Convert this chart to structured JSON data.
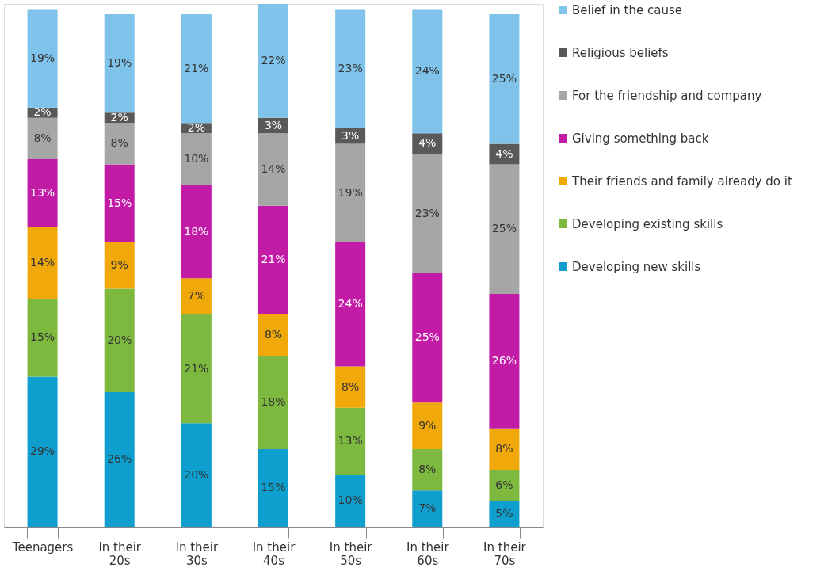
{
  "chart_data": {
    "type": "bar",
    "stacked": true,
    "legend": "right",
    "categories": [
      "Teenagers",
      "In their 20s",
      "In their 30s",
      "In their 40s",
      "In their 50s",
      "In their 60s",
      "In their 70s"
    ],
    "series": [
      {
        "name": "Developing new skills",
        "color": "#0e9fce",
        "values": [
          29,
          26,
          20,
          15,
          10,
          7,
          5
        ],
        "value_labels": [
          "29%",
          "26%",
          "20%",
          "15%",
          "10%",
          "7%",
          "5%"
        ]
      },
      {
        "name": "Developing existing skills",
        "color": "#7db83f",
        "values": [
          15,
          20,
          21,
          18,
          13,
          8,
          6
        ],
        "value_labels": [
          "15%",
          "20%",
          "21%",
          "18%",
          "13%",
          "8%",
          "6%"
        ]
      },
      {
        "name": "Their friends and family already do it",
        "color": "#f0a80a",
        "values": [
          14,
          9,
          7,
          8,
          8,
          9,
          8
        ],
        "value_labels": [
          "14%",
          "9%",
          "7%",
          "8%",
          "8%",
          "9%",
          "8%"
        ]
      },
      {
        "name": "Giving something back",
        "color": "#c21ba6",
        "values": [
          13,
          15,
          18,
          21,
          24,
          25,
          26
        ],
        "value_labels": [
          "13%",
          "15%",
          "18%",
          "21%",
          "24%",
          "25%",
          "26%"
        ]
      },
      {
        "name": "For the friendship and company",
        "color": "#a6a6a6",
        "values": [
          8,
          8,
          10,
          14,
          19,
          23,
          25
        ],
        "value_labels": [
          "8%",
          "8%",
          "10%",
          "14%",
          "19%",
          "23%",
          "25%"
        ]
      },
      {
        "name": "Religious beliefs",
        "color": "#595959",
        "values": [
          2,
          2,
          2,
          3,
          3,
          4,
          4
        ],
        "value_labels": [
          "2%",
          "2%",
          "2%",
          "3%",
          "3%",
          "4%",
          "4%"
        ]
      },
      {
        "name": "Belief in the cause",
        "color": "#7fc3ea",
        "values": [
          19,
          19,
          21,
          22,
          23,
          24,
          25
        ],
        "value_labels": [
          "19%",
          "19%",
          "21%",
          "22%",
          "23%",
          "24%",
          "25%"
        ]
      }
    ]
  }
}
